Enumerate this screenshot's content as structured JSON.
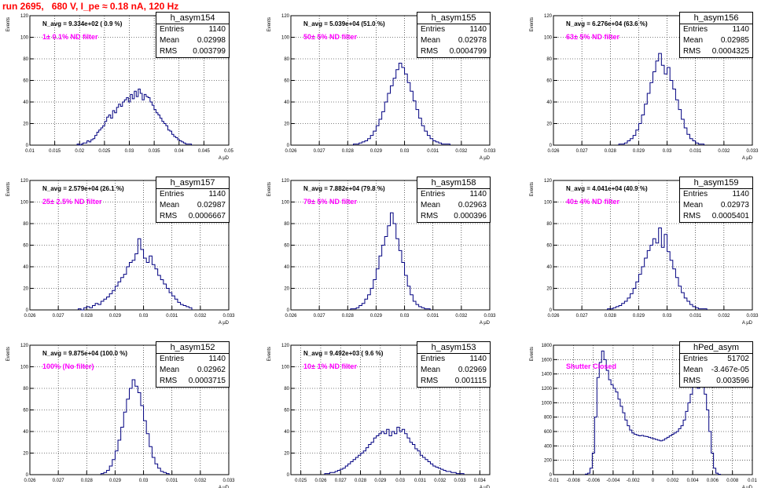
{
  "page_title": "run 2695,   680 V, I_pe ≈ 0.18 nA, 120 Hz",
  "chart_data": [
    {
      "type": "histogram",
      "title": "h_asym154",
      "navg": "N_avg = 9.334e+02 ( 0.9 %)",
      "filter": "1± 0.1% ND filter",
      "stats": [
        [
          "Entries",
          "1140"
        ],
        [
          "Mean",
          "0.02998"
        ],
        [
          "RMS",
          "0.003799"
        ]
      ],
      "ylabel": "Events",
      "xlabel": "A_{μD}",
      "xlim": [
        0.01,
        0.05
      ],
      "ylim": [
        0,
        120
      ],
      "xticks": [
        "0.01",
        "0.015",
        "0.02",
        "0.025",
        "0.03",
        "0.035",
        "0.04",
        "0.045",
        "0.05"
      ],
      "yticks": [
        "0",
        "20",
        "40",
        "60",
        "80",
        "100",
        "120"
      ],
      "x_range": [
        0.0195,
        0.0425
      ],
      "counts": [
        1,
        0,
        1,
        2,
        2,
        4,
        3,
        5,
        6,
        9,
        12,
        14,
        16,
        18,
        22,
        26,
        28,
        25,
        32,
        30,
        35,
        38,
        36,
        40,
        42,
        44,
        40,
        47,
        43,
        50,
        45,
        52,
        48,
        42,
        47,
        45,
        44,
        40,
        37,
        33,
        30,
        28,
        25,
        22,
        20,
        18,
        14,
        13,
        10,
        8,
        7,
        5,
        4,
        3,
        2,
        1,
        1,
        1
      ]
    },
    {
      "type": "histogram",
      "title": "h_asym155",
      "navg": "N_avg = 5.039e+04 (51.0 %)",
      "filter": "50± 5% ND filter",
      "stats": [
        [
          "Entries",
          "1140"
        ],
        [
          "Mean",
          "0.02978"
        ],
        [
          "RMS",
          "0.0004799"
        ]
      ],
      "ylabel": "Events",
      "xlabel": "A_{μD}",
      "xlim": [
        0.026,
        0.033
      ],
      "ylim": [
        0,
        120
      ],
      "xticks": [
        "0.026",
        "0.027",
        "0.028",
        "0.029",
        "0.03",
        "0.031",
        "0.032",
        "0.033"
      ],
      "yticks": [
        "0",
        "20",
        "40",
        "60",
        "80",
        "100",
        "120"
      ],
      "x_range": [
        0.0282,
        0.0316
      ],
      "counts": [
        1,
        1,
        2,
        3,
        4,
        6,
        9,
        13,
        18,
        24,
        31,
        40,
        48,
        55,
        62,
        70,
        76,
        72,
        66,
        58,
        50,
        41,
        33,
        25,
        18,
        13,
        9,
        6,
        4,
        3,
        2,
        1,
        1,
        1
      ]
    },
    {
      "type": "histogram",
      "title": "h_asym156",
      "navg": "N_avg = 6.276e+04 (63.6 %)",
      "filter": "63± 5% ND filter",
      "stats": [
        [
          "Entries",
          "1140"
        ],
        [
          "Mean",
          "0.02985"
        ],
        [
          "RMS",
          "0.0004325"
        ]
      ],
      "ylabel": "Events",
      "xlabel": "A_{μD}",
      "xlim": [
        0.026,
        0.033
      ],
      "ylim": [
        0,
        120
      ],
      "xticks": [
        "0.026",
        "0.027",
        "0.028",
        "0.029",
        "0.03",
        "0.031",
        "0.032",
        "0.033"
      ],
      "yticks": [
        "0",
        "20",
        "40",
        "60",
        "80",
        "100",
        "120"
      ],
      "x_range": [
        0.0283,
        0.0313
      ],
      "counts": [
        1,
        1,
        2,
        4,
        6,
        9,
        14,
        20,
        28,
        38,
        48,
        58,
        68,
        78,
        85,
        74,
        66,
        72,
        60,
        52,
        42,
        33,
        24,
        16,
        10,
        6,
        4,
        2,
        1,
        1
      ]
    },
    {
      "type": "histogram",
      "title": "h_asym157",
      "navg": "N_avg = 2.579e+04 (26.1 %)",
      "filter": "25± 2.5% ND filter",
      "stats": [
        [
          "Entries",
          "1140"
        ],
        [
          "Mean",
          "0.02987"
        ],
        [
          "RMS",
          "0.0006667"
        ]
      ],
      "ylabel": "Events",
      "xlabel": "A_{μD}",
      "xlim": [
        0.026,
        0.033
      ],
      "ylim": [
        0,
        120
      ],
      "xticks": [
        "0.026",
        "0.027",
        "0.028",
        "0.029",
        "0.03",
        "0.031",
        "0.032",
        "0.033"
      ],
      "yticks": [
        "0",
        "20",
        "40",
        "60",
        "80",
        "100",
        "120"
      ],
      "x_range": [
        0.0277,
        0.0317
      ],
      "counts": [
        1,
        0,
        2,
        3,
        2,
        4,
        6,
        5,
        8,
        10,
        12,
        15,
        18,
        22,
        26,
        30,
        33,
        40,
        44,
        46,
        52,
        66,
        56,
        48,
        44,
        50,
        42,
        38,
        32,
        28,
        24,
        20,
        16,
        13,
        10,
        7,
        5,
        4,
        3,
        2
      ]
    },
    {
      "type": "histogram",
      "title": "h_asym158",
      "navg": "N_avg = 7.882e+04 (79.8 %)",
      "filter": "79± 5% ND filter",
      "stats": [
        [
          "Entries",
          "1140"
        ],
        [
          "Mean",
          "0.02963"
        ],
        [
          "RMS",
          "0.000396"
        ]
      ],
      "ylabel": "Events",
      "xlabel": "A_{μD}",
      "xlim": [
        0.026,
        0.033
      ],
      "ylim": [
        0,
        120
      ],
      "xticks": [
        "0.026",
        "0.027",
        "0.028",
        "0.029",
        "0.03",
        "0.031",
        "0.032",
        "0.033"
      ],
      "yticks": [
        "0",
        "20",
        "40",
        "60",
        "80",
        "100",
        "120"
      ],
      "x_range": [
        0.0281,
        0.0309
      ],
      "counts": [
        1,
        1,
        2,
        4,
        6,
        10,
        14,
        20,
        28,
        38,
        50,
        60,
        68,
        78,
        90,
        80,
        66,
        55,
        44,
        32,
        22,
        14,
        8,
        5,
        3,
        2,
        1,
        1
      ]
    },
    {
      "type": "histogram",
      "title": "h_asym159",
      "navg": "N_avg = 4.041e+04 (40.9 %)",
      "filter": "40± 4% ND filter",
      "stats": [
        [
          "Entries",
          "1140"
        ],
        [
          "Mean",
          "0.02973"
        ],
        [
          "RMS",
          "0.0005401"
        ]
      ],
      "ylabel": "Events",
      "xlabel": "A_{μD}",
      "xlim": [
        0.026,
        0.033
      ],
      "ylim": [
        0,
        120
      ],
      "xticks": [
        "0.026",
        "0.027",
        "0.028",
        "0.029",
        "0.03",
        "0.031",
        "0.032",
        "0.033"
      ],
      "yticks": [
        "0",
        "20",
        "40",
        "60",
        "80",
        "100",
        "120"
      ],
      "x_range": [
        0.0279,
        0.0314
      ],
      "counts": [
        1,
        1,
        2,
        3,
        4,
        6,
        8,
        11,
        15,
        20,
        26,
        33,
        40,
        48,
        55,
        60,
        66,
        62,
        76,
        58,
        70,
        54,
        46,
        38,
        30,
        22,
        16,
        11,
        8,
        5,
        3,
        2,
        1,
        1,
        1
      ]
    },
    {
      "type": "histogram",
      "title": "h_asym152",
      "navg": "N_avg = 9.875e+04 (100.0 %)",
      "filter": "100% (No filter)",
      "stats": [
        [
          "Entries",
          "1140"
        ],
        [
          "Mean",
          "0.02962"
        ],
        [
          "RMS",
          "0.0003715"
        ]
      ],
      "ylabel": "Events",
      "xlabel": "A_{μD}",
      "xlim": [
        0.026,
        0.033
      ],
      "ylim": [
        0,
        120
      ],
      "xticks": [
        "0.026",
        "0.027",
        "0.028",
        "0.029",
        "0.03",
        "0.031",
        "0.032",
        "0.033"
      ],
      "yticks": [
        "0",
        "20",
        "40",
        "60",
        "80",
        "100",
        "120"
      ],
      "x_range": [
        0.0285,
        0.0309
      ],
      "counts": [
        1,
        2,
        4,
        8,
        14,
        22,
        32,
        44,
        58,
        70,
        80,
        88,
        82,
        76,
        64,
        50,
        38,
        26,
        16,
        10,
        6,
        3,
        2,
        1
      ]
    },
    {
      "type": "histogram",
      "title": "h_asym153",
      "navg": "N_avg = 9.492e+03 ( 9.6 %)",
      "filter": "10± 1% ND filter",
      "stats": [
        [
          "Entries",
          "1140"
        ],
        [
          "Mean",
          "0.02969"
        ],
        [
          "RMS",
          "0.001115"
        ]
      ],
      "ylabel": "Events",
      "xlabel": "A_{μD}",
      "xlim": [
        0.0245,
        0.0345
      ],
      "ylim": [
        0,
        120
      ],
      "xticks": [
        "0.025",
        "0.026",
        "0.027",
        "0.028",
        "0.029",
        "0.03",
        "0.031",
        "0.032",
        "0.033",
        "0.034"
      ],
      "yticks": [
        "0",
        "20",
        "40",
        "60",
        "80",
        "100",
        "120"
      ],
      "x_range": [
        0.0262,
        0.0332
      ],
      "counts": [
        1,
        1,
        2,
        2,
        3,
        4,
        5,
        6,
        8,
        10,
        12,
        14,
        16,
        18,
        20,
        22,
        25,
        28,
        30,
        34,
        36,
        38,
        40,
        38,
        42,
        36,
        40,
        38,
        44,
        40,
        42,
        38,
        34,
        30,
        28,
        24,
        22,
        18,
        16,
        14,
        12,
        10,
        8,
        7,
        6,
        5,
        4,
        3,
        3,
        2,
        2,
        1,
        1,
        1
      ]
    },
    {
      "type": "histogram",
      "title": "hPed_asym",
      "navg": "",
      "filter": "Shutter Closed",
      "stats": [
        [
          "Entries",
          "51702"
        ],
        [
          "Mean",
          "-3.467e-05"
        ],
        [
          "RMS",
          "0.003596"
        ]
      ],
      "ylabel": "Events",
      "xlabel": "A_{μD}",
      "xlim": [
        -0.01,
        0.01
      ],
      "ylim": [
        0,
        1800
      ],
      "xticks": [
        "-0.01",
        "-0.008",
        "-0.006",
        "-0.004",
        "-0.002",
        "0",
        "0.002",
        "0.004",
        "0.006",
        "0.008",
        "0.01"
      ],
      "yticks": [
        "0",
        "200",
        "400",
        "600",
        "800",
        "1000",
        "1200",
        "1400",
        "1600",
        "1800"
      ],
      "x_range": [
        -0.0068,
        0.0068
      ],
      "counts": [
        8,
        20,
        90,
        300,
        800,
        1350,
        1560,
        1720,
        1600,
        1450,
        1320,
        1250,
        1200,
        1150,
        1050,
        950,
        860,
        760,
        680,
        620,
        580,
        560,
        550,
        540,
        545,
        535,
        530,
        520,
        510,
        500,
        490,
        480,
        470,
        480,
        500,
        520,
        540,
        560,
        580,
        600,
        640,
        680,
        760,
        880,
        1000,
        1120,
        1240,
        1300,
        1200,
        1340,
        1280,
        1120,
        900,
        600,
        300,
        90,
        20,
        5
      ]
    }
  ]
}
